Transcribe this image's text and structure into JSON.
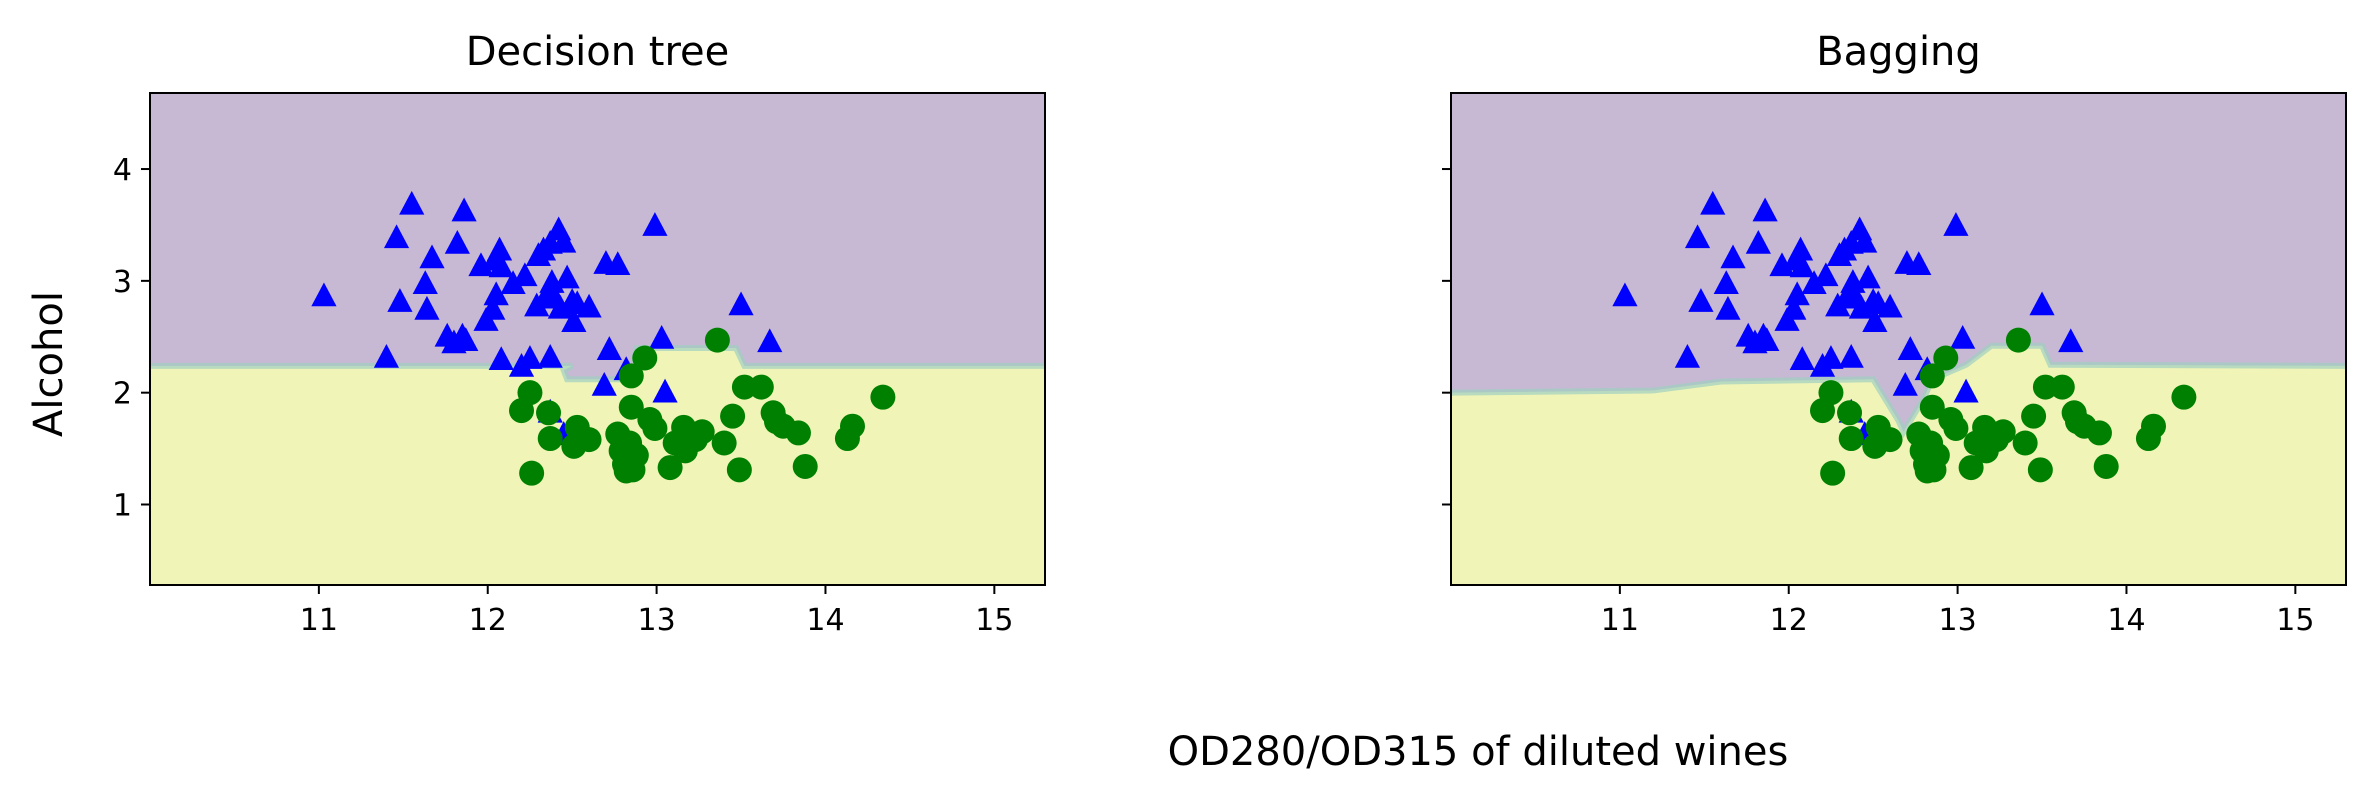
{
  "figure": {
    "xlabel": "OD280/OD315 of diluted wines",
    "ylabel": "Alcohol"
  },
  "chart_data": [
    {
      "type": "scatter",
      "title": "Decision tree",
      "xlim": [
        10.0,
        15.3
      ],
      "ylim": [
        0.28,
        4.68
      ],
      "xticks": [
        11,
        12,
        13,
        14,
        15
      ],
      "yticks": [
        1,
        2,
        3,
        4
      ],
      "region_colors": {
        "class_1": "#c7b9d4",
        "class_2": "#f0f5b7"
      },
      "boundary_points": [
        [
          10.0,
          2.24
        ],
        [
          12.5,
          2.24
        ],
        [
          12.45,
          2.2
        ],
        [
          12.47,
          2.12
        ],
        [
          12.85,
          2.12
        ],
        [
          12.88,
          2.4
        ],
        [
          13.47,
          2.4
        ],
        [
          13.52,
          2.24
        ],
        [
          15.3,
          2.24
        ]
      ],
      "series": [
        {
          "marker": "triangle",
          "color": "#0000ff",
          "points": [
            [
              11.03,
              2.86
            ],
            [
              11.4,
              2.31
            ],
            [
              11.46,
              3.38
            ],
            [
              11.48,
              2.81
            ],
            [
              11.55,
              3.68
            ],
            [
              11.63,
              2.97
            ],
            [
              11.64,
              2.74
            ],
            [
              11.67,
              3.2
            ],
            [
              11.76,
              2.5
            ],
            [
              11.8,
              2.44
            ],
            [
              11.82,
              3.33
            ],
            [
              11.85,
              2.5
            ],
            [
              11.86,
              3.62
            ],
            [
              11.87,
              2.46
            ],
            [
              11.96,
              3.13
            ],
            [
              11.99,
              2.64
            ],
            [
              12.03,
              2.74
            ],
            [
              12.04,
              3.18
            ],
            [
              12.05,
              2.87
            ],
            [
              12.07,
              3.27
            ],
            [
              12.08,
              3.12
            ],
            [
              12.08,
              2.29
            ],
            [
              12.15,
              2.97
            ],
            [
              12.2,
              2.23
            ],
            [
              12.22,
              3.04
            ],
            [
              12.25,
              2.3
            ],
            [
              12.29,
              2.77
            ],
            [
              12.3,
              3.22
            ],
            [
              12.33,
              3.27
            ],
            [
              12.34,
              2.84
            ],
            [
              12.37,
              3.33
            ],
            [
              12.37,
              2.31
            ],
            [
              12.38,
              2.98
            ],
            [
              12.39,
              2.86
            ],
            [
              12.42,
              3.45
            ],
            [
              12.43,
              2.75
            ],
            [
              12.45,
              3.34
            ],
            [
              12.47,
              3.02
            ],
            [
              12.5,
              2.81
            ],
            [
              12.51,
              2.63
            ],
            [
              12.53,
              2.79
            ],
            [
              12.6,
              2.76
            ],
            [
              12.69,
              2.06
            ],
            [
              12.7,
              3.15
            ],
            [
              12.72,
              2.38
            ],
            [
              12.77,
              3.14
            ],
            [
              12.99,
              3.49
            ],
            [
              13.03,
              2.48
            ],
            [
              13.5,
              2.78
            ],
            [
              13.67,
              2.45
            ],
            [
              12.82,
              2.2
            ],
            [
              12.37,
              1.82
            ],
            [
              12.45,
              1.62
            ],
            [
              13.05,
              2.0
            ]
          ]
        },
        {
          "marker": "circle",
          "color": "#008000",
          "points": [
            [
              12.2,
              1.84
            ],
            [
              12.25,
              2.0
            ],
            [
              12.26,
              1.28
            ],
            [
              12.36,
              1.82
            ],
            [
              12.37,
              1.59
            ],
            [
              12.51,
              1.52
            ],
            [
              12.53,
              1.69
            ],
            [
              12.6,
              1.58
            ],
            [
              12.77,
              1.63
            ],
            [
              12.79,
              1.48
            ],
            [
              12.81,
              1.36
            ],
            [
              12.82,
              1.3
            ],
            [
              12.84,
              1.55
            ],
            [
              12.85,
              2.15
            ],
            [
              12.85,
              1.87
            ],
            [
              12.86,
              1.31
            ],
            [
              12.88,
              1.44
            ],
            [
              12.93,
              2.31
            ],
            [
              12.96,
              1.76
            ],
            [
              13.08,
              1.33
            ],
            [
              13.16,
              1.69
            ],
            [
              13.17,
              1.48
            ],
            [
              13.23,
              1.58
            ],
            [
              13.27,
              1.65
            ],
            [
              13.36,
              2.47
            ],
            [
              13.4,
              1.55
            ],
            [
              13.45,
              1.79
            ],
            [
              13.49,
              1.31
            ],
            [
              13.52,
              2.05
            ],
            [
              13.62,
              2.05
            ],
            [
              13.69,
              1.82
            ],
            [
              13.71,
              1.74
            ],
            [
              13.75,
              1.7
            ],
            [
              13.84,
              1.64
            ],
            [
              13.88,
              1.34
            ],
            [
              14.13,
              1.59
            ],
            [
              14.16,
              1.7
            ],
            [
              14.34,
              1.96
            ],
            [
              12.99,
              1.68
            ],
            [
              13.11,
              1.55
            ],
            [
              13.21,
              1.61
            ]
          ]
        }
      ]
    },
    {
      "type": "scatter",
      "title": "Bagging",
      "xlim": [
        10.0,
        15.3
      ],
      "ylim": [
        0.28,
        4.68
      ],
      "xticks": [
        11,
        12,
        13,
        14,
        15
      ],
      "yticks": [
        1,
        2,
        3,
        4
      ],
      "region_colors": {
        "class_1": "#c7b9d4",
        "class_2": "#f0f5b7"
      },
      "boundary_points": [
        [
          10.0,
          2.0
        ],
        [
          11.2,
          2.02
        ],
        [
          11.6,
          2.1
        ],
        [
          12.5,
          2.12
        ],
        [
          12.65,
          1.75
        ],
        [
          12.68,
          1.65
        ],
        [
          12.8,
          1.95
        ],
        [
          12.85,
          2.12
        ],
        [
          13.05,
          2.25
        ],
        [
          13.2,
          2.42
        ],
        [
          13.5,
          2.42
        ],
        [
          13.55,
          2.25
        ],
        [
          15.3,
          2.24
        ]
      ],
      "series": [
        {
          "marker": "triangle",
          "color": "#0000ff",
          "points": [
            [
              11.03,
              2.86
            ],
            [
              11.4,
              2.31
            ],
            [
              11.46,
              3.38
            ],
            [
              11.48,
              2.81
            ],
            [
              11.55,
              3.68
            ],
            [
              11.63,
              2.97
            ],
            [
              11.64,
              2.74
            ],
            [
              11.67,
              3.2
            ],
            [
              11.76,
              2.5
            ],
            [
              11.8,
              2.44
            ],
            [
              11.82,
              3.33
            ],
            [
              11.85,
              2.5
            ],
            [
              11.86,
              3.62
            ],
            [
              11.87,
              2.46
            ],
            [
              11.96,
              3.13
            ],
            [
              11.99,
              2.64
            ],
            [
              12.03,
              2.74
            ],
            [
              12.04,
              3.18
            ],
            [
              12.05,
              2.87
            ],
            [
              12.07,
              3.27
            ],
            [
              12.08,
              3.12
            ],
            [
              12.08,
              2.29
            ],
            [
              12.15,
              2.97
            ],
            [
              12.2,
              2.23
            ],
            [
              12.22,
              3.04
            ],
            [
              12.25,
              2.3
            ],
            [
              12.29,
              2.77
            ],
            [
              12.3,
              3.22
            ],
            [
              12.33,
              3.27
            ],
            [
              12.34,
              2.84
            ],
            [
              12.37,
              3.33
            ],
            [
              12.37,
              2.31
            ],
            [
              12.38,
              2.98
            ],
            [
              12.39,
              2.86
            ],
            [
              12.42,
              3.45
            ],
            [
              12.43,
              2.75
            ],
            [
              12.45,
              3.34
            ],
            [
              12.47,
              3.02
            ],
            [
              12.5,
              2.81
            ],
            [
              12.51,
              2.63
            ],
            [
              12.53,
              2.79
            ],
            [
              12.6,
              2.76
            ],
            [
              12.69,
              2.06
            ],
            [
              12.7,
              3.15
            ],
            [
              12.72,
              2.38
            ],
            [
              12.77,
              3.14
            ],
            [
              12.99,
              3.49
            ],
            [
              13.03,
              2.48
            ],
            [
              13.5,
              2.78
            ],
            [
              13.67,
              2.45
            ],
            [
              12.82,
              2.2
            ],
            [
              12.37,
              1.82
            ],
            [
              12.45,
              1.62
            ],
            [
              13.05,
              2.0
            ]
          ]
        },
        {
          "marker": "circle",
          "color": "#008000",
          "points": [
            [
              12.2,
              1.84
            ],
            [
              12.25,
              2.0
            ],
            [
              12.26,
              1.28
            ],
            [
              12.36,
              1.82
            ],
            [
              12.37,
              1.59
            ],
            [
              12.51,
              1.52
            ],
            [
              12.53,
              1.69
            ],
            [
              12.6,
              1.58
            ],
            [
              12.77,
              1.63
            ],
            [
              12.79,
              1.48
            ],
            [
              12.81,
              1.36
            ],
            [
              12.82,
              1.3
            ],
            [
              12.84,
              1.55
            ],
            [
              12.85,
              2.15
            ],
            [
              12.85,
              1.87
            ],
            [
              12.86,
              1.31
            ],
            [
              12.88,
              1.44
            ],
            [
              12.93,
              2.31
            ],
            [
              12.96,
              1.76
            ],
            [
              13.08,
              1.33
            ],
            [
              13.16,
              1.69
            ],
            [
              13.17,
              1.48
            ],
            [
              13.23,
              1.58
            ],
            [
              13.27,
              1.65
            ],
            [
              13.36,
              2.47
            ],
            [
              13.4,
              1.55
            ],
            [
              13.45,
              1.79
            ],
            [
              13.49,
              1.31
            ],
            [
              13.52,
              2.05
            ],
            [
              13.62,
              2.05
            ],
            [
              13.69,
              1.82
            ],
            [
              13.71,
              1.74
            ],
            [
              13.75,
              1.7
            ],
            [
              13.84,
              1.64
            ],
            [
              13.88,
              1.34
            ],
            [
              14.13,
              1.59
            ],
            [
              14.16,
              1.7
            ],
            [
              14.34,
              1.96
            ],
            [
              12.99,
              1.68
            ],
            [
              13.11,
              1.55
            ],
            [
              13.21,
              1.61
            ]
          ]
        }
      ]
    }
  ]
}
